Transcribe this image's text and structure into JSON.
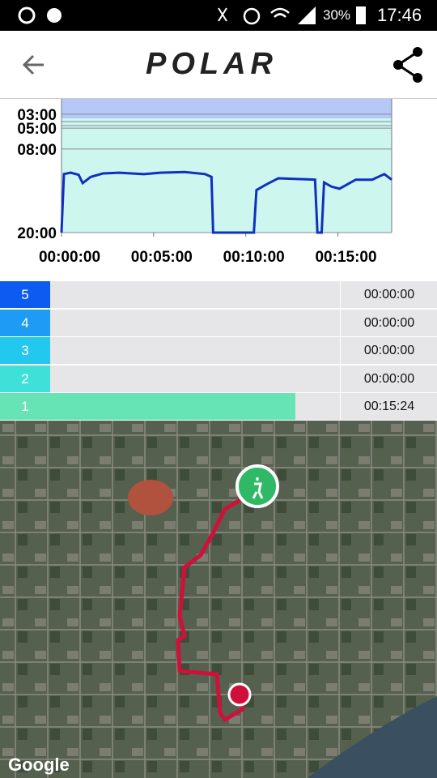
{
  "status_bar": {
    "battery": "30%",
    "time": "17:46"
  },
  "header": {
    "logo": "POLAR"
  },
  "chart_data": {
    "type": "line",
    "x": [
      0,
      0.13,
      0.49,
      0.93,
      1.15,
      1.59,
      2.26,
      3.14,
      4.47,
      5.35,
      6.68,
      7.79,
      8.14,
      8.23,
      10.44,
      10.58,
      11.11,
      11.77,
      13.76,
      13.89,
      14.12,
      14.25,
      14.65,
      15.09,
      15.97,
      16.86,
      17.52,
      17.92
    ],
    "series": [
      {
        "color": "#1030c0",
        "values": [
          20,
          11.6,
          11.4,
          11.7,
          12.9,
          12,
          11.5,
          11.4,
          11.6,
          11.4,
          11.3,
          11.6,
          12,
          20,
          20,
          13.9,
          13.1,
          12.2,
          12.4,
          20,
          20,
          12.8,
          13.4,
          13.7,
          12.4,
          12.4,
          11.6,
          12.4
        ]
      }
    ],
    "xlim": [
      0,
      17.92
    ],
    "xticks": [
      {
        "value": 0,
        "label": "00:00:00"
      },
      {
        "value": 5,
        "label": "00:05:00"
      },
      {
        "value": 10,
        "label": "00:10:00"
      },
      {
        "value": 15,
        "label": "00:15:00"
      }
    ],
    "ylim": [
      20,
      0.8
    ],
    "yticks": [
      {
        "value": 3,
        "label": "03:00"
      },
      {
        "value": 5,
        "label": "05:00"
      },
      {
        "value": 8,
        "label": "08:00"
      },
      {
        "value": 20,
        "label": "20:00"
      }
    ]
  },
  "zones": [
    {
      "zone": "5",
      "time": "00:00:00"
    },
    {
      "zone": "4",
      "time": "00:00:00"
    },
    {
      "zone": "3",
      "time": "00:00:00"
    },
    {
      "zone": "2",
      "time": "00:00:00"
    },
    {
      "zone": "1",
      "time": "00:15:24"
    }
  ],
  "map": {
    "attribution": "Google"
  }
}
